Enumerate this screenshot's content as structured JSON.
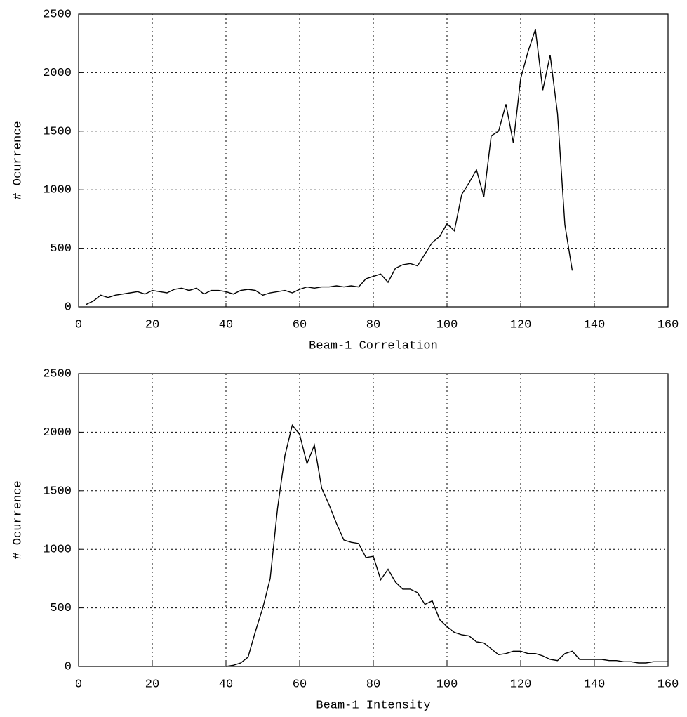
{
  "chart_data": [
    {
      "type": "line",
      "color": "#000000",
      "grid": true,
      "xlabel": "Beam-1 Correlation",
      "ylabel": "# Ocurrence",
      "xlim": [
        0,
        160
      ],
      "ylim": [
        0,
        2500
      ],
      "xticks": [
        0,
        20,
        40,
        60,
        80,
        100,
        120,
        140,
        160
      ],
      "yticks": [
        0,
        500,
        1000,
        1500,
        2000,
        2500
      ],
      "x": [
        2,
        4,
        6,
        8,
        10,
        12,
        14,
        16,
        18,
        20,
        22,
        24,
        26,
        28,
        30,
        32,
        34,
        36,
        38,
        40,
        42,
        44,
        46,
        48,
        50,
        52,
        54,
        56,
        58,
        60,
        62,
        64,
        66,
        68,
        70,
        72,
        74,
        76,
        78,
        80,
        82,
        84,
        86,
        88,
        90,
        92,
        94,
        96,
        98,
        100,
        102,
        104,
        106,
        108,
        110,
        112,
        114,
        116,
        118,
        120,
        122,
        124,
        126,
        128,
        130,
        132,
        134
      ],
      "values": [
        20,
        50,
        100,
        80,
        100,
        110,
        120,
        130,
        110,
        140,
        130,
        120,
        150,
        160,
        140,
        160,
        110,
        140,
        140,
        130,
        110,
        140,
        150,
        140,
        100,
        120,
        130,
        140,
        120,
        150,
        170,
        160,
        170,
        170,
        180,
        170,
        180,
        170,
        240,
        260,
        280,
        210,
        330,
        360,
        370,
        350,
        450,
        550,
        600,
        710,
        650,
        960,
        1060,
        1170,
        940,
        1460,
        1500,
        1730,
        1400,
        1950,
        2180,
        2370,
        1850,
        2150,
        1650,
        700,
        310
      ]
    },
    {
      "type": "line",
      "color": "#000000",
      "grid": true,
      "xlabel": "Beam-1 Intensity",
      "ylabel": "# Ocurrence",
      "xlim": [
        0,
        160
      ],
      "ylim": [
        0,
        2500
      ],
      "xticks": [
        0,
        20,
        40,
        60,
        80,
        100,
        120,
        140,
        160
      ],
      "yticks": [
        0,
        500,
        1000,
        1500,
        2000,
        2500
      ],
      "x": [
        40,
        42,
        44,
        46,
        48,
        50,
        52,
        54,
        56,
        58,
        60,
        62,
        64,
        66,
        68,
        70,
        72,
        74,
        76,
        78,
        80,
        82,
        84,
        86,
        88,
        90,
        92,
        94,
        96,
        98,
        100,
        102,
        104,
        106,
        108,
        110,
        112,
        114,
        116,
        118,
        120,
        122,
        124,
        126,
        128,
        130,
        132,
        134,
        136,
        138,
        140,
        142,
        144,
        146,
        148,
        150,
        152,
        154,
        156,
        158,
        160
      ],
      "values": [
        0,
        10,
        30,
        80,
        300,
        500,
        750,
        1350,
        1800,
        2060,
        1980,
        1730,
        1890,
        1520,
        1380,
        1220,
        1080,
        1060,
        1050,
        930,
        940,
        740,
        830,
        720,
        660,
        660,
        630,
        530,
        560,
        400,
        340,
        290,
        270,
        260,
        210,
        200,
        150,
        100,
        110,
        130,
        130,
        110,
        110,
        90,
        60,
        50,
        110,
        130,
        60,
        60,
        60,
        60,
        50,
        50,
        40,
        40,
        30,
        30,
        40,
        40,
        40
      ]
    }
  ]
}
